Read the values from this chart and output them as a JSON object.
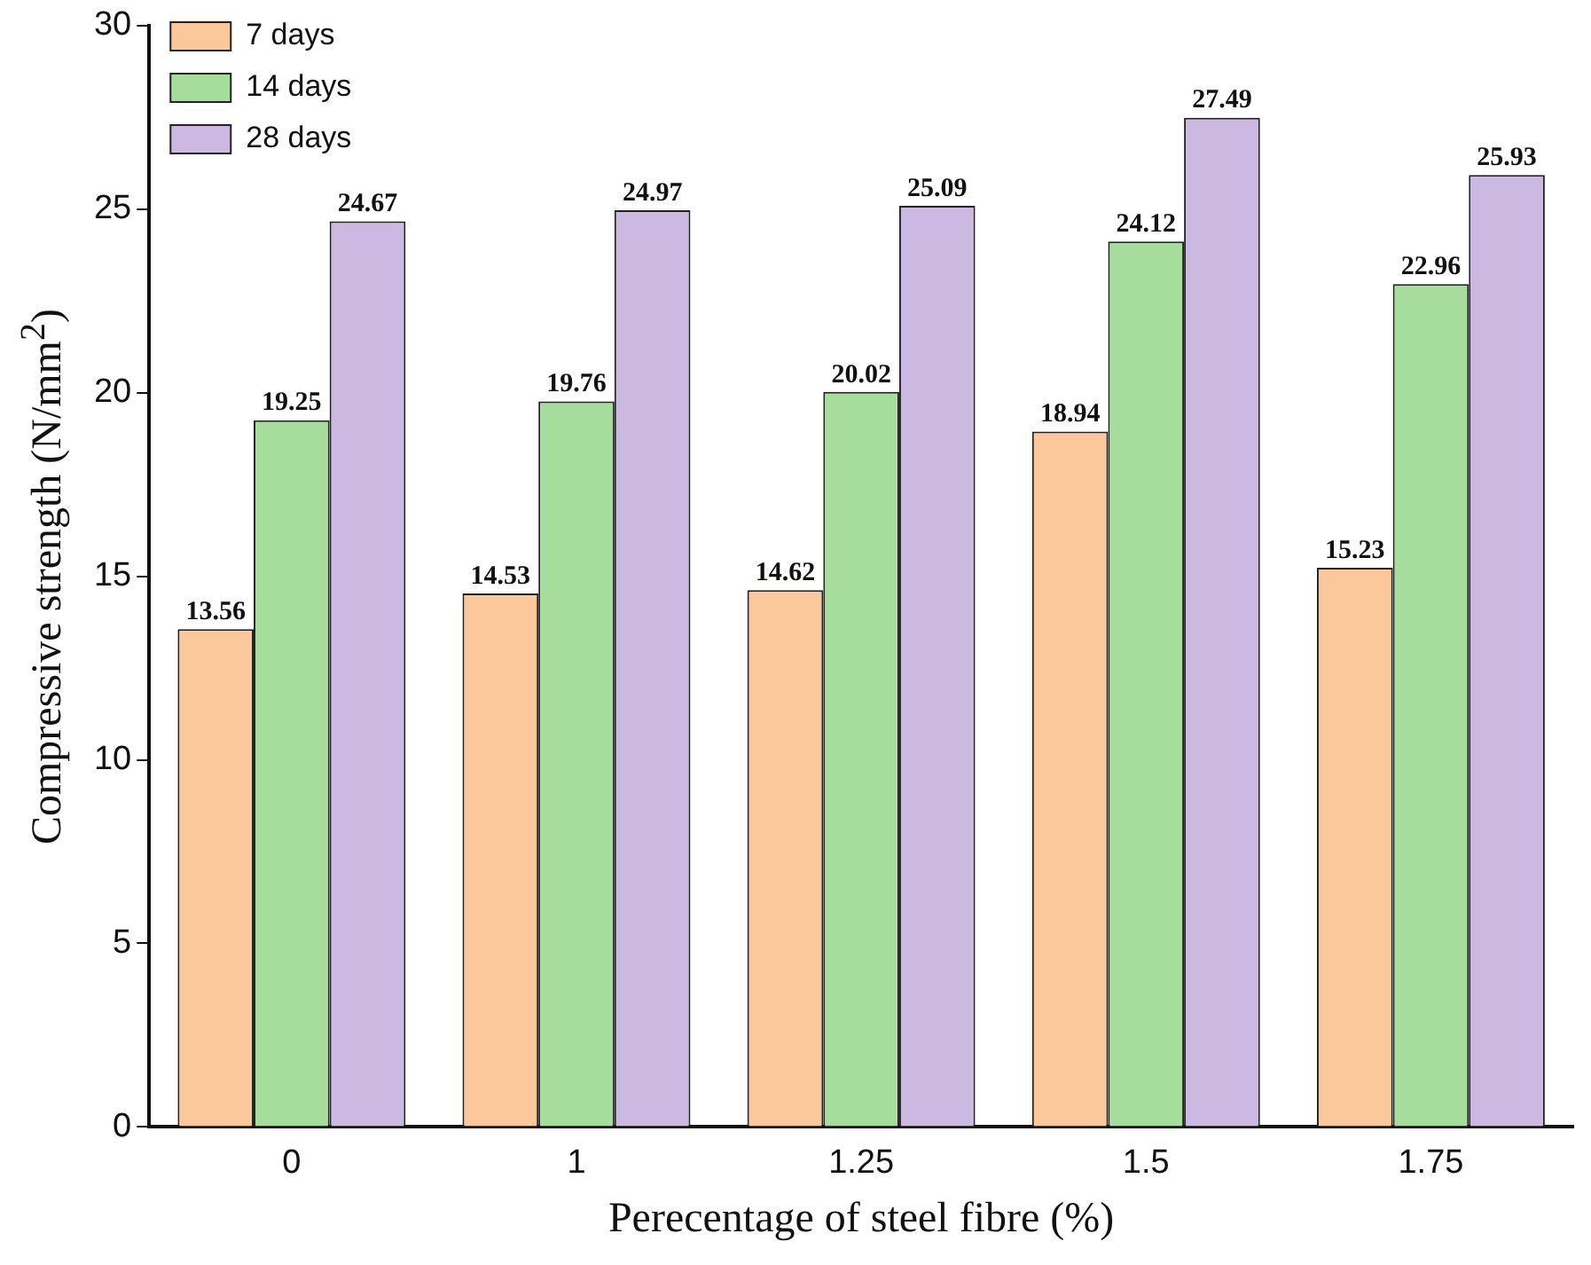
{
  "chart_data": {
    "type": "bar",
    "xlabel": "Perecentage of steel fibre (%)",
    "ylabel": "Compressive strength (N/mm$^{2}$)",
    "categories": [
      "0",
      "1",
      "1.25",
      "1.5",
      "1.75"
    ],
    "series": [
      {
        "name": "7 days",
        "color": "#fbc89c",
        "values": [
          13.56,
          14.53,
          14.62,
          18.94,
          15.23
        ]
      },
      {
        "name": "14 days",
        "color": "#a6dc9c",
        "values": [
          19.25,
          19.76,
          20.02,
          24.12,
          22.96
        ]
      },
      {
        "name": "28 days",
        "color": "#cbb9e2",
        "values": [
          24.67,
          24.97,
          25.09,
          27.49,
          25.93
        ]
      }
    ],
    "ylim": [
      0,
      30
    ],
    "yticks": [
      0,
      5,
      10,
      15,
      20,
      25,
      30
    ],
    "legend": "top left",
    "data_labels": true,
    "grid": false
  }
}
